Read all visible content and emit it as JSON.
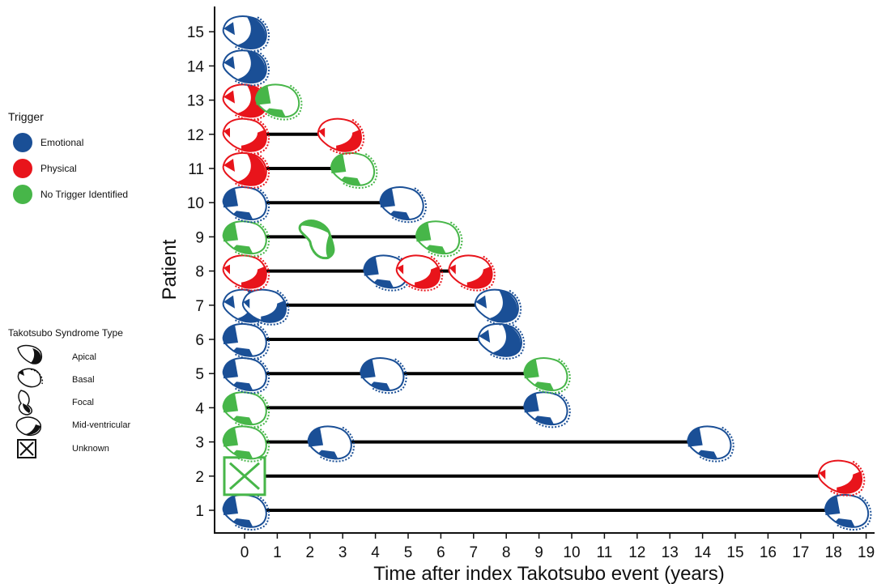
{
  "chart_data": {
    "type": "scatter",
    "title": "",
    "xlabel": "Time after index Takotsubo event (years)",
    "ylabel": "Patient",
    "xlim": [
      -0.9,
      19.4
    ],
    "ylim": [
      0.5,
      15.6
    ],
    "x_ticks": [
      "0",
      "1",
      "2",
      "3",
      "4",
      "5",
      "6",
      "7",
      "8",
      "9",
      "10",
      "11",
      "12",
      "13",
      "14",
      "15",
      "16",
      "17",
      "18",
      "19"
    ],
    "y_ticks": [
      "1",
      "2",
      "3",
      "4",
      "5",
      "6",
      "7",
      "8",
      "9",
      "10",
      "11",
      "12",
      "13",
      "14",
      "15"
    ],
    "grid": false,
    "legend_position": "left",
    "colors": {
      "Emotional": "#1a4f96",
      "Physical": "#e8141b",
      "No Trigger Identified": "#47b649"
    },
    "patients": [
      {
        "patient": 1,
        "follow_up_end": 18.5,
        "events": [
          {
            "x": 0,
            "trigger": "Emotional",
            "type": "Basal"
          },
          {
            "x": 18.4,
            "trigger": "Emotional",
            "type": "Basal"
          }
        ]
      },
      {
        "patient": 2,
        "follow_up_end": 18.5,
        "events": [
          {
            "x": 0,
            "trigger": "No Trigger Identified",
            "type": "Unknown"
          },
          {
            "x": 18.2,
            "trigger": "Physical",
            "type": "Mid-ventricular"
          }
        ]
      },
      {
        "patient": 3,
        "follow_up_end": 14.4,
        "events": [
          {
            "x": 0,
            "trigger": "No Trigger Identified",
            "type": "Basal"
          },
          {
            "x": 2.6,
            "trigger": "Emotional",
            "type": "Basal"
          },
          {
            "x": 14.2,
            "trigger": "Emotional",
            "type": "Basal"
          }
        ]
      },
      {
        "patient": 4,
        "follow_up_end": 9.2,
        "events": [
          {
            "x": 0,
            "trigger": "No Trigger Identified",
            "type": "Basal"
          },
          {
            "x": 9.2,
            "trigger": "Emotional",
            "type": "Basal"
          }
        ]
      },
      {
        "patient": 5,
        "follow_up_end": 9.2,
        "events": [
          {
            "x": 0,
            "trigger": "Emotional",
            "type": "Basal"
          },
          {
            "x": 4.2,
            "trigger": "Emotional",
            "type": "Basal"
          },
          {
            "x": 9.2,
            "trigger": "No Trigger Identified",
            "type": "Basal"
          }
        ]
      },
      {
        "patient": 6,
        "follow_up_end": 7.8,
        "events": [
          {
            "x": 0,
            "trigger": "Emotional",
            "type": "Basal"
          },
          {
            "x": 7.8,
            "trigger": "Emotional",
            "type": "Apical"
          }
        ]
      },
      {
        "patient": 7,
        "follow_up_end": 7.7,
        "events": [
          {
            "x": 0,
            "trigger": "Emotional",
            "type": "Apical"
          },
          {
            "x": 0.6,
            "trigger": "Emotional",
            "type": "Mid-ventricular"
          },
          {
            "x": 7.7,
            "trigger": "Emotional",
            "type": "Apical"
          }
        ]
      },
      {
        "patient": 8,
        "follow_up_end": 6.9,
        "events": [
          {
            "x": 0,
            "trigger": "Physical",
            "type": "Mid-ventricular"
          },
          {
            "x": 4.3,
            "trigger": "Emotional",
            "type": "Basal"
          },
          {
            "x": 5.3,
            "trigger": "Physical",
            "type": "Mid-ventricular"
          },
          {
            "x": 6.9,
            "trigger": "Physical",
            "type": "Mid-ventricular"
          }
        ]
      },
      {
        "patient": 9,
        "follow_up_end": 5.9,
        "events": [
          {
            "x": 0,
            "trigger": "No Trigger Identified",
            "type": "Basal"
          },
          {
            "x": 2.2,
            "trigger": "No Trigger Identified",
            "type": "Focal"
          },
          {
            "x": 5.9,
            "trigger": "No Trigger Identified",
            "type": "Basal"
          }
        ]
      },
      {
        "patient": 10,
        "follow_up_end": 4.8,
        "events": [
          {
            "x": 0,
            "trigger": "Emotional",
            "type": "Basal"
          },
          {
            "x": 4.8,
            "trigger": "Emotional",
            "type": "Basal"
          }
        ]
      },
      {
        "patient": 11,
        "follow_up_end": 3.3,
        "events": [
          {
            "x": 0,
            "trigger": "Physical",
            "type": "Apical"
          },
          {
            "x": 3.3,
            "trigger": "No Trigger Identified",
            "type": "Basal"
          }
        ]
      },
      {
        "patient": 12,
        "follow_up_end": 2.9,
        "events": [
          {
            "x": 0,
            "trigger": "Physical",
            "type": "Mid-ventricular"
          },
          {
            "x": 2.9,
            "trigger": "Physical",
            "type": "Mid-ventricular"
          }
        ]
      },
      {
        "patient": 13,
        "follow_up_end": 1.0,
        "events": [
          {
            "x": 0,
            "trigger": "Physical",
            "type": "Apical"
          },
          {
            "x": 1.0,
            "trigger": "No Trigger Identified",
            "type": "Basal"
          }
        ]
      },
      {
        "patient": 14,
        "follow_up_end": 0.3,
        "events": [
          {
            "x": 0,
            "trigger": "Emotional",
            "type": "Apical"
          }
        ]
      },
      {
        "patient": 15,
        "follow_up_end": 0.1,
        "events": [
          {
            "x": 0,
            "trigger": "Emotional",
            "type": "Apical"
          }
        ]
      }
    ]
  },
  "legend": {
    "trigger_title": "Trigger",
    "triggers": [
      {
        "label": "Emotional",
        "color": "#1a4f96"
      },
      {
        "label": "Physical",
        "color": "#e8141b"
      },
      {
        "label": "No Trigger Identified",
        "color": "#47b649"
      }
    ],
    "type_title": "Takotsubo Syndrome Type",
    "types": [
      {
        "label": "Apical",
        "icon": "apical-heart-icon"
      },
      {
        "label": "Basal",
        "icon": "basal-heart-icon"
      },
      {
        "label": "Focal",
        "icon": "focal-heart-icon"
      },
      {
        "label": "Mid-ventricular",
        "icon": "mid-ventricular-heart-icon"
      },
      {
        "label": "Unknown",
        "icon": "unknown-box-icon"
      }
    ]
  }
}
